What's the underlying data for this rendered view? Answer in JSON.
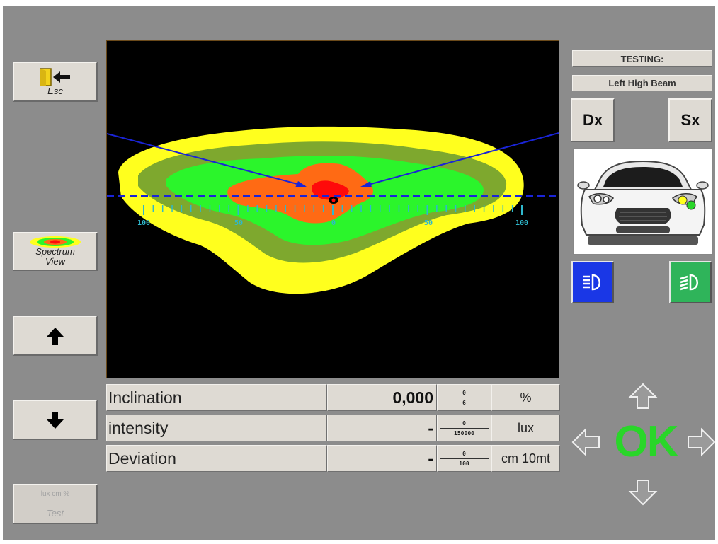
{
  "nav": {
    "esc_label": "Esc",
    "spectrum_label_1": "Spectrum",
    "spectrum_label_2": "View",
    "test_sub_label": "lux cm %",
    "test_label": "Test"
  },
  "status": {
    "testing_label": "TESTING:",
    "beam_label": "Left High Beam",
    "dx_label": "Dx",
    "sx_label": "Sx"
  },
  "scale": {
    "ticks": [
      "100",
      "50",
      "0",
      "50",
      "100"
    ]
  },
  "measurements": [
    {
      "label": "Inclination",
      "value": "0,000",
      "range_min": "0",
      "range_max": "6",
      "unit": "%"
    },
    {
      "label": "intensity",
      "value": "-",
      "range_min": "0",
      "range_max": "150000",
      "unit": "lux"
    },
    {
      "label": "Deviation",
      "value": "-",
      "range_min": "0",
      "range_max": "100",
      "unit": "cm 10mt"
    }
  ],
  "confirm": {
    "ok_label": "OK"
  },
  "colors": {
    "background": "#8c8c8c",
    "button_face": "#dedad3",
    "ok_green": "#29d629",
    "beam_yellow": "#ffff1e",
    "beam_olive": "#7ea82e",
    "beam_green": "#2bf52b",
    "beam_orange": "#ff6a14",
    "beam_red": "#ff0a0a",
    "marker_blue": "#1a24d8",
    "scale_cyan": "#2fb8cc",
    "high_beam_blue": "#1a37e6",
    "low_beam_green": "#2fb45a"
  },
  "icons": {
    "exit": "exit-door-icon",
    "spectrum": "spectrum-thumbnail-icon",
    "up": "arrow-up-icon",
    "down": "arrow-down-icon",
    "high_beam": "high-beam-icon",
    "low_beam": "low-beam-icon",
    "nav_up": "nav-arrow-up-icon",
    "nav_down": "nav-arrow-down-icon",
    "nav_left": "nav-arrow-left-icon",
    "nav_right": "nav-arrow-right-icon"
  }
}
